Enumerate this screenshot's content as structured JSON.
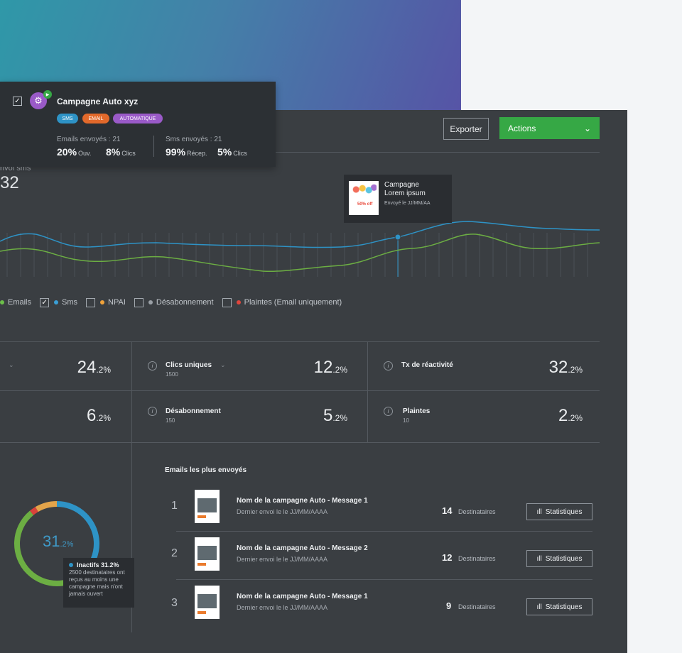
{
  "header": {
    "export_label": "Exporter",
    "actions_label": "Actions",
    "actions_chevron": "⌄"
  },
  "envoi": {
    "label": "nvoi sms",
    "value": "32"
  },
  "tooltip": {
    "title_line1": "Campagne",
    "title_line2": "Lorem ipsum",
    "sub": "Envoyé le JJ/MM/AA",
    "thumb_text": "50% off"
  },
  "legend": [
    {
      "label": "Emails",
      "color": "#6cbf4a",
      "checked": false
    },
    {
      "label": "Sms",
      "color": "#3a9fd6",
      "checked": true
    },
    {
      "label": "NPAI",
      "color": "#f0a23a",
      "checked": false
    },
    {
      "label": "Désabonnement",
      "color": "#9aa0a6",
      "checked": false
    },
    {
      "label": "Plaintes (Email uniquement)",
      "color": "#e0453c",
      "checked": false
    }
  ],
  "stats": {
    "r1c1": {
      "value": "24",
      "unit": ".2%"
    },
    "r1c2": {
      "name": "Clics uniques",
      "sub": "1500",
      "value": "12",
      "unit": ".2%"
    },
    "r1c3": {
      "name": "Tx de réactivité",
      "value": "32",
      "unit": ".2%"
    },
    "r2c1": {
      "value": "6",
      "unit": ".2%"
    },
    "r2c2": {
      "name": "Désabonnement",
      "sub": "150",
      "value": "5",
      "unit": ".2%"
    },
    "r2c3": {
      "name": "Plaintes",
      "sub": "10",
      "value": "2",
      "unit": ".2%"
    }
  },
  "donut": {
    "value": "31",
    "unit": ".2%",
    "segments": [
      {
        "name": "blue",
        "percent": 31.2,
        "color": "#2e93c6"
      },
      {
        "name": "green",
        "percent": 57.8,
        "color": "#6cae43"
      },
      {
        "name": "red",
        "percent": 2.5,
        "color": "#d8423a"
      },
      {
        "name": "orange",
        "percent": 8.5,
        "color": "#e3a44a"
      }
    ],
    "inactifs": {
      "title": "Inactifs 31.2%",
      "l1": "2500 destinataires ont",
      "l2": "reçus au moins une",
      "l3": "campagne mais n'ont",
      "l4": "jamais ouvert"
    }
  },
  "emails": {
    "title": "Emails les plus envoyés",
    "rows": [
      {
        "num": "1",
        "title": "Nom de la campagne Auto - Message 1",
        "date": "Dernier envoi le le JJ/MM/AAAA",
        "count": "14",
        "dest": "Destinataires",
        "btn": "Statistiques"
      },
      {
        "num": "2",
        "title": "Nom de la campagne Auto - Message 2",
        "date": "Dernier envoi le le JJ/MM/AAAA",
        "count": "12",
        "dest": "Destinataires",
        "btn": "Statistiques"
      },
      {
        "num": "3",
        "title": "Nom de la campagne Auto  - Message 1",
        "date": "Dernier envoi le le JJ/MM/AAAA",
        "count": "9",
        "dest": "Destinataires",
        "btn": "Statistiques"
      }
    ]
  },
  "card": {
    "title": "Campagne Auto xyz",
    "tags": [
      {
        "label": "SMS",
        "color": "#2e93c6"
      },
      {
        "label": "EMAIL",
        "color": "#e2692b"
      },
      {
        "label": "AUTOMATIQUE",
        "color": "#9a5ac8"
      }
    ],
    "emails_label": "Emails envoyés : 21",
    "emails_open": "20%",
    "emails_open_unit": "Ouv.",
    "emails_clicks": "8%",
    "emails_clicks_unit": "Clics",
    "sms_label": "Sms envoyés : 21",
    "sms_recep": "99%",
    "sms_recep_unit": "Récep.",
    "sms_clicks": "5%",
    "sms_clicks_unit": "Clics"
  },
  "colors": {
    "accent_green": "#36a845",
    "line_blue": "#2e93c6",
    "line_green": "#6cae43"
  }
}
